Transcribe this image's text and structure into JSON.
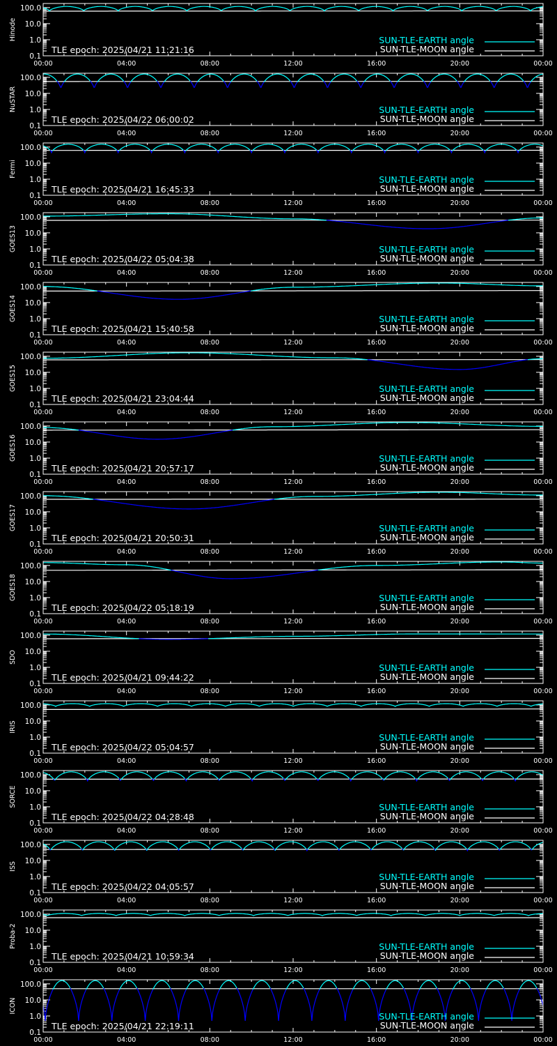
{
  "colors": {
    "background": "#000000",
    "axes": "#ffffff",
    "earth_angle": "#00ffff",
    "moon_angle": "#ffffff",
    "earth_angle_low": "#0000ff"
  },
  "legend": {
    "earth": "SUN-TLE-EARTH angle",
    "moon": "SUN-TLE-MOON angle",
    "placement": "bottom-right"
  },
  "time_ticks": [
    "00:00",
    "04:00",
    "08:00",
    "12:00",
    "16:00",
    "20:00",
    "00:00"
  ],
  "y_ticks": [
    "100.0",
    "10.0",
    "1.0",
    "0.1"
  ],
  "chart_data": [
    {
      "type": "line",
      "ylabel": "Hinode",
      "epoch": "TLE epoch: 2025/04/21 11:21:16",
      "ylim": [
        0.1,
        180
      ],
      "xlim": [
        0,
        24
      ],
      "yscale": "log",
      "earth": {
        "kind": "periodic",
        "period_h": 1.65,
        "phase_h": 0.3,
        "min": 62,
        "max": 118
      },
      "moon": {
        "kind": "line",
        "points": [
          [
            0,
            60
          ],
          [
            24,
            62
          ]
        ]
      }
    },
    {
      "type": "line",
      "ylabel": "NuSTAR",
      "epoch": "TLE epoch: 2025/04/22 06:00:02",
      "ylim": [
        0.1,
        180
      ],
      "xlim": [
        0,
        24
      ],
      "yscale": "log",
      "earth": {
        "kind": "periodic",
        "period_h": 1.6,
        "phase_h": 0.85,
        "min": 18,
        "max": 160
      },
      "moon": {
        "kind": "line",
        "points": [
          [
            0,
            55
          ],
          [
            24,
            56
          ]
        ]
      }
    },
    {
      "type": "line",
      "ylabel": "Fermi",
      "epoch": "TLE epoch: 2025/04/21 16:45:33",
      "ylim": [
        0.1,
        180
      ],
      "xlim": [
        0,
        24
      ],
      "yscale": "log",
      "earth": {
        "kind": "periodic",
        "period_h": 1.6,
        "phase_h": 0.4,
        "min": 45,
        "max": 150
      },
      "moon": {
        "kind": "line",
        "points": [
          [
            0,
            62
          ],
          [
            24,
            63
          ]
        ]
      }
    },
    {
      "type": "line",
      "ylabel": "GOES13",
      "epoch": "TLE epoch: 2025/04/22 05:04:38",
      "ylim": [
        0.1,
        180
      ],
      "xlim": [
        0,
        24
      ],
      "yscale": "log",
      "earth": {
        "kind": "smooth",
        "points": [
          [
            0,
            110
          ],
          [
            6,
            155
          ],
          [
            12,
            75
          ],
          [
            18.5,
            18
          ],
          [
            24,
            85
          ]
        ]
      },
      "moon": {
        "kind": "line",
        "points": [
          [
            0,
            60
          ],
          [
            24,
            62
          ]
        ]
      }
    },
    {
      "type": "line",
      "ylabel": "GOES14",
      "epoch": "TLE epoch: 2025/04/21 15:40:58",
      "ylim": [
        0.1,
        180
      ],
      "xlim": [
        0,
        24
      ],
      "yscale": "log",
      "earth": {
        "kind": "smooth",
        "points": [
          [
            0,
            100
          ],
          [
            6.5,
            16
          ],
          [
            12,
            90
          ],
          [
            19,
            165
          ],
          [
            24,
            110
          ]
        ]
      },
      "moon": {
        "kind": "line",
        "points": [
          [
            0,
            52
          ],
          [
            24,
            56
          ]
        ]
      }
    },
    {
      "type": "line",
      "ylabel": "GOES15",
      "epoch": "TLE epoch: 2025/04/21 23:04:44",
      "ylim": [
        0.1,
        180
      ],
      "xlim": [
        0,
        24
      ],
      "yscale": "log",
      "earth": {
        "kind": "smooth",
        "points": [
          [
            0,
            75
          ],
          [
            7,
            165
          ],
          [
            14,
            80
          ],
          [
            20,
            15
          ],
          [
            24,
            70
          ]
        ]
      },
      "moon": {
        "kind": "line",
        "points": [
          [
            0,
            60
          ],
          [
            24,
            62
          ]
        ]
      }
    },
    {
      "type": "line",
      "ylabel": "GOES16",
      "epoch": "TLE epoch: 2025/04/21 20:57:17",
      "ylim": [
        0.1,
        180
      ],
      "xlim": [
        0,
        24
      ],
      "yscale": "log",
      "earth": {
        "kind": "smooth",
        "points": [
          [
            0,
            80
          ],
          [
            5.5,
            15
          ],
          [
            11,
            90
          ],
          [
            17.5,
            165
          ],
          [
            24,
            95
          ]
        ]
      },
      "moon": {
        "kind": "line",
        "points": [
          [
            0,
            55
          ],
          [
            24,
            59
          ]
        ]
      }
    },
    {
      "type": "line",
      "ylabel": "GOES17",
      "epoch": "TLE epoch: 2025/04/21 20:50:31",
      "ylim": [
        0.1,
        180
      ],
      "xlim": [
        0,
        24
      ],
      "yscale": "log",
      "earth": {
        "kind": "smooth",
        "points": [
          [
            0,
            100
          ],
          [
            7,
            15
          ],
          [
            13,
            90
          ],
          [
            19,
            165
          ],
          [
            24,
            110
          ]
        ]
      },
      "moon": {
        "kind": "line",
        "points": [
          [
            0,
            60
          ],
          [
            24,
            61
          ]
        ]
      }
    },
    {
      "type": "line",
      "ylabel": "GOES18",
      "epoch": "TLE epoch: 2025/04/22 05:18:19",
      "ylim": [
        0.1,
        180
      ],
      "xlim": [
        0,
        24
      ],
      "yscale": "log",
      "earth": {
        "kind": "smooth",
        "points": [
          [
            0,
            150
          ],
          [
            4,
            110
          ],
          [
            9,
            15
          ],
          [
            16,
            100
          ],
          [
            22,
            165
          ],
          [
            24,
            140
          ]
        ]
      },
      "moon": {
        "kind": "line",
        "points": [
          [
            0,
            50
          ],
          [
            24,
            54
          ]
        ]
      }
    },
    {
      "type": "line",
      "ylabel": "SDO",
      "epoch": "TLE epoch: 2025/04/21 09:44:22",
      "ylim": [
        0.1,
        180
      ],
      "xlim": [
        0,
        24
      ],
      "yscale": "log",
      "earth": {
        "kind": "smooth",
        "points": [
          [
            0,
            118
          ],
          [
            6,
            55
          ],
          [
            12,
            85
          ],
          [
            18,
            120
          ],
          [
            24,
            118
          ]
        ]
      },
      "moon": {
        "kind": "line",
        "points": [
          [
            0,
            60
          ],
          [
            24,
            63
          ]
        ]
      }
    },
    {
      "type": "line",
      "ylabel": "IRIS",
      "epoch": "TLE epoch: 2025/04/22 05:04:57",
      "ylim": [
        0.1,
        180
      ],
      "xlim": [
        0,
        24
      ],
      "yscale": "log",
      "earth": {
        "kind": "periodic",
        "period_h": 1.63,
        "phase_h": 0.6,
        "min": 80,
        "max": 120
      },
      "moon": {
        "kind": "line",
        "points": [
          [
            0,
            52
          ],
          [
            24,
            56
          ]
        ]
      }
    },
    {
      "type": "line",
      "ylabel": "SORCE",
      "epoch": "TLE epoch: 2025/04/22 04:28:48",
      "ylim": [
        0.1,
        180
      ],
      "xlim": [
        0,
        24
      ],
      "yscale": "log",
      "earth": {
        "kind": "periodic",
        "period_h": 1.58,
        "phase_h": 0.55,
        "min": 38,
        "max": 150
      },
      "moon": {
        "kind": "line",
        "points": [
          [
            0,
            52
          ],
          [
            24,
            54
          ]
        ]
      }
    },
    {
      "type": "line",
      "ylabel": "ISS",
      "epoch": "TLE epoch: 2025/04/22 04:05:57",
      "ylim": [
        0.1,
        180
      ],
      "xlim": [
        0,
        24
      ],
      "yscale": "log",
      "earth": {
        "kind": "periodic",
        "period_h": 1.54,
        "phase_h": 0.35,
        "min": 38,
        "max": 145
      },
      "moon": {
        "kind": "line",
        "points": [
          [
            0,
            48
          ],
          [
            24,
            50
          ]
        ]
      }
    },
    {
      "type": "line",
      "ylabel": "Proba-2",
      "epoch": "TLE epoch: 2025/04/21 10:59:34",
      "ylim": [
        0.1,
        180
      ],
      "xlim": [
        0,
        24
      ],
      "yscale": "log",
      "earth": {
        "kind": "periodic",
        "period_h": 1.65,
        "phase_h": 0.2,
        "min": 80,
        "max": 110
      },
      "moon": {
        "kind": "line",
        "points": [
          [
            0,
            60
          ],
          [
            24,
            60
          ]
        ]
      }
    },
    {
      "type": "line",
      "ylabel": "ICON",
      "epoch": "TLE epoch: 2025/04/21 22:19:11",
      "ylim": [
        0.1,
        180
      ],
      "xlim": [
        0,
        24
      ],
      "yscale": "log",
      "earth": {
        "kind": "periodic",
        "period_h": 1.6,
        "phase_h": 0.1,
        "min": 0.5,
        "max": 160
      },
      "moon": {
        "kind": "line",
        "points": [
          [
            0,
            50
          ],
          [
            24,
            50
          ]
        ]
      }
    }
  ]
}
